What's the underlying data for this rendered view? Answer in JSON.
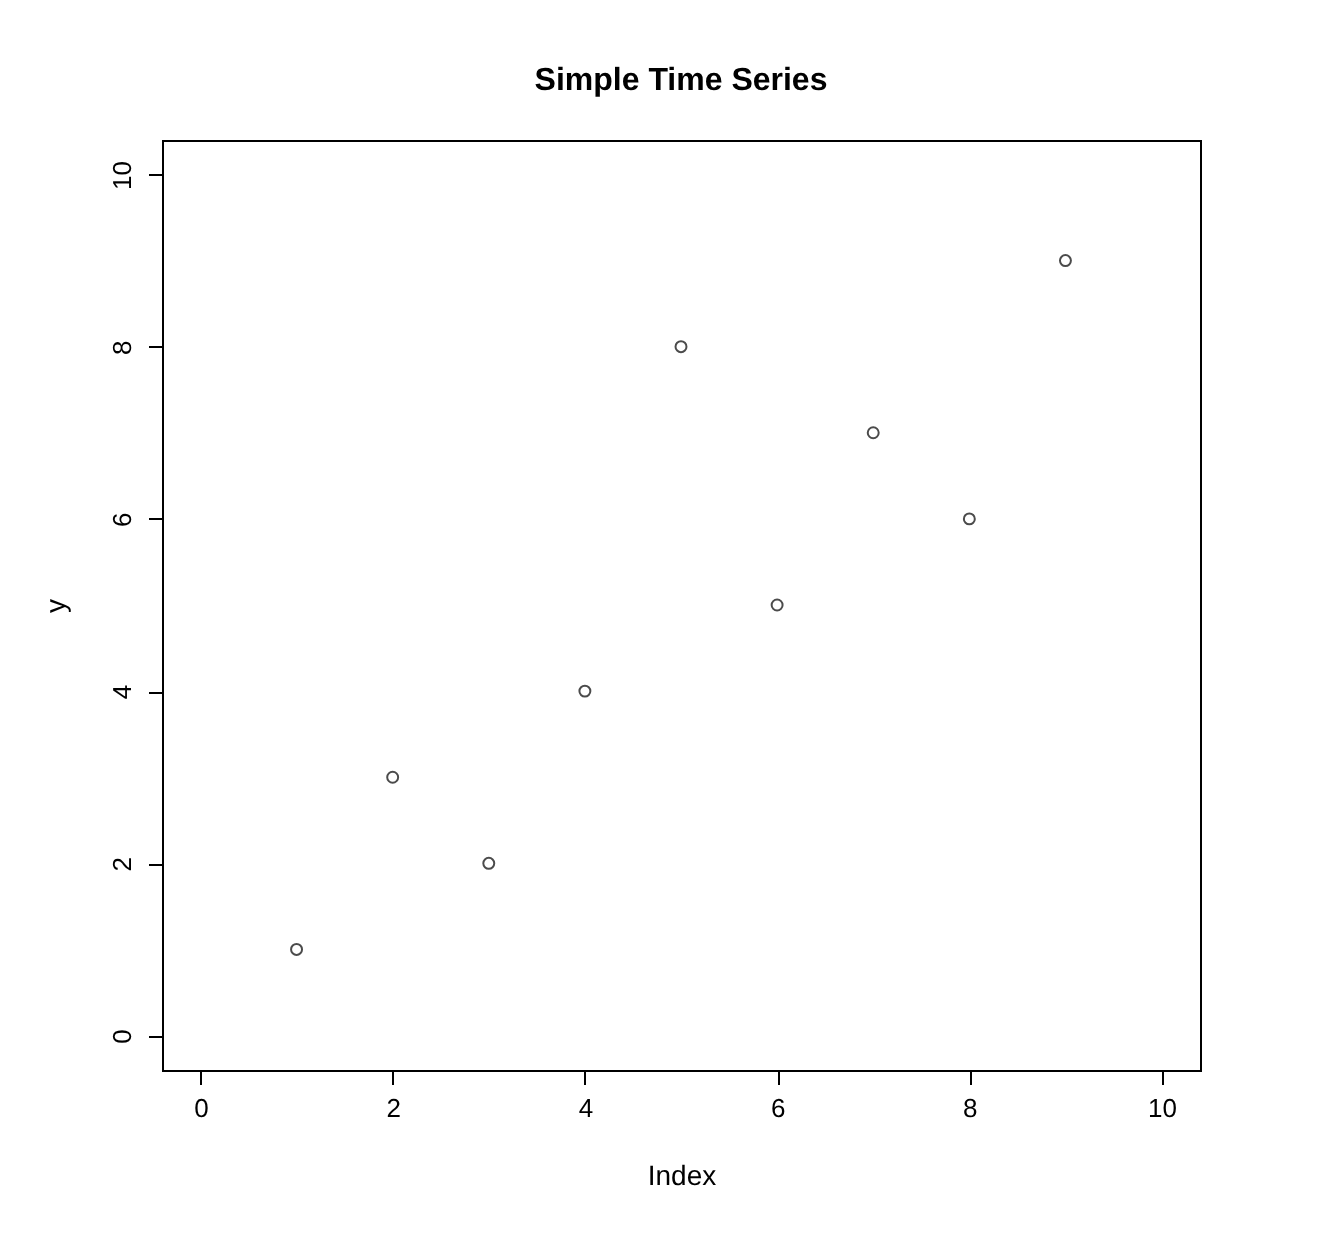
{
  "chart_data": {
    "type": "scatter",
    "title": "Simple Time Series",
    "xlabel": "Index",
    "ylabel": "y",
    "x": [
      1,
      2,
      3,
      4,
      5,
      6,
      7,
      8,
      9
    ],
    "values": [
      1,
      3,
      2,
      4,
      8,
      5,
      7,
      6,
      9
    ],
    "xlim": [
      -0.4,
      10.4
    ],
    "ylim": [
      -0.4,
      10.4
    ],
    "xticks": [
      0,
      2,
      4,
      6,
      8,
      10
    ],
    "yticks": [
      0,
      2,
      4,
      6,
      8,
      10
    ],
    "marker": "circle",
    "grid": false
  }
}
